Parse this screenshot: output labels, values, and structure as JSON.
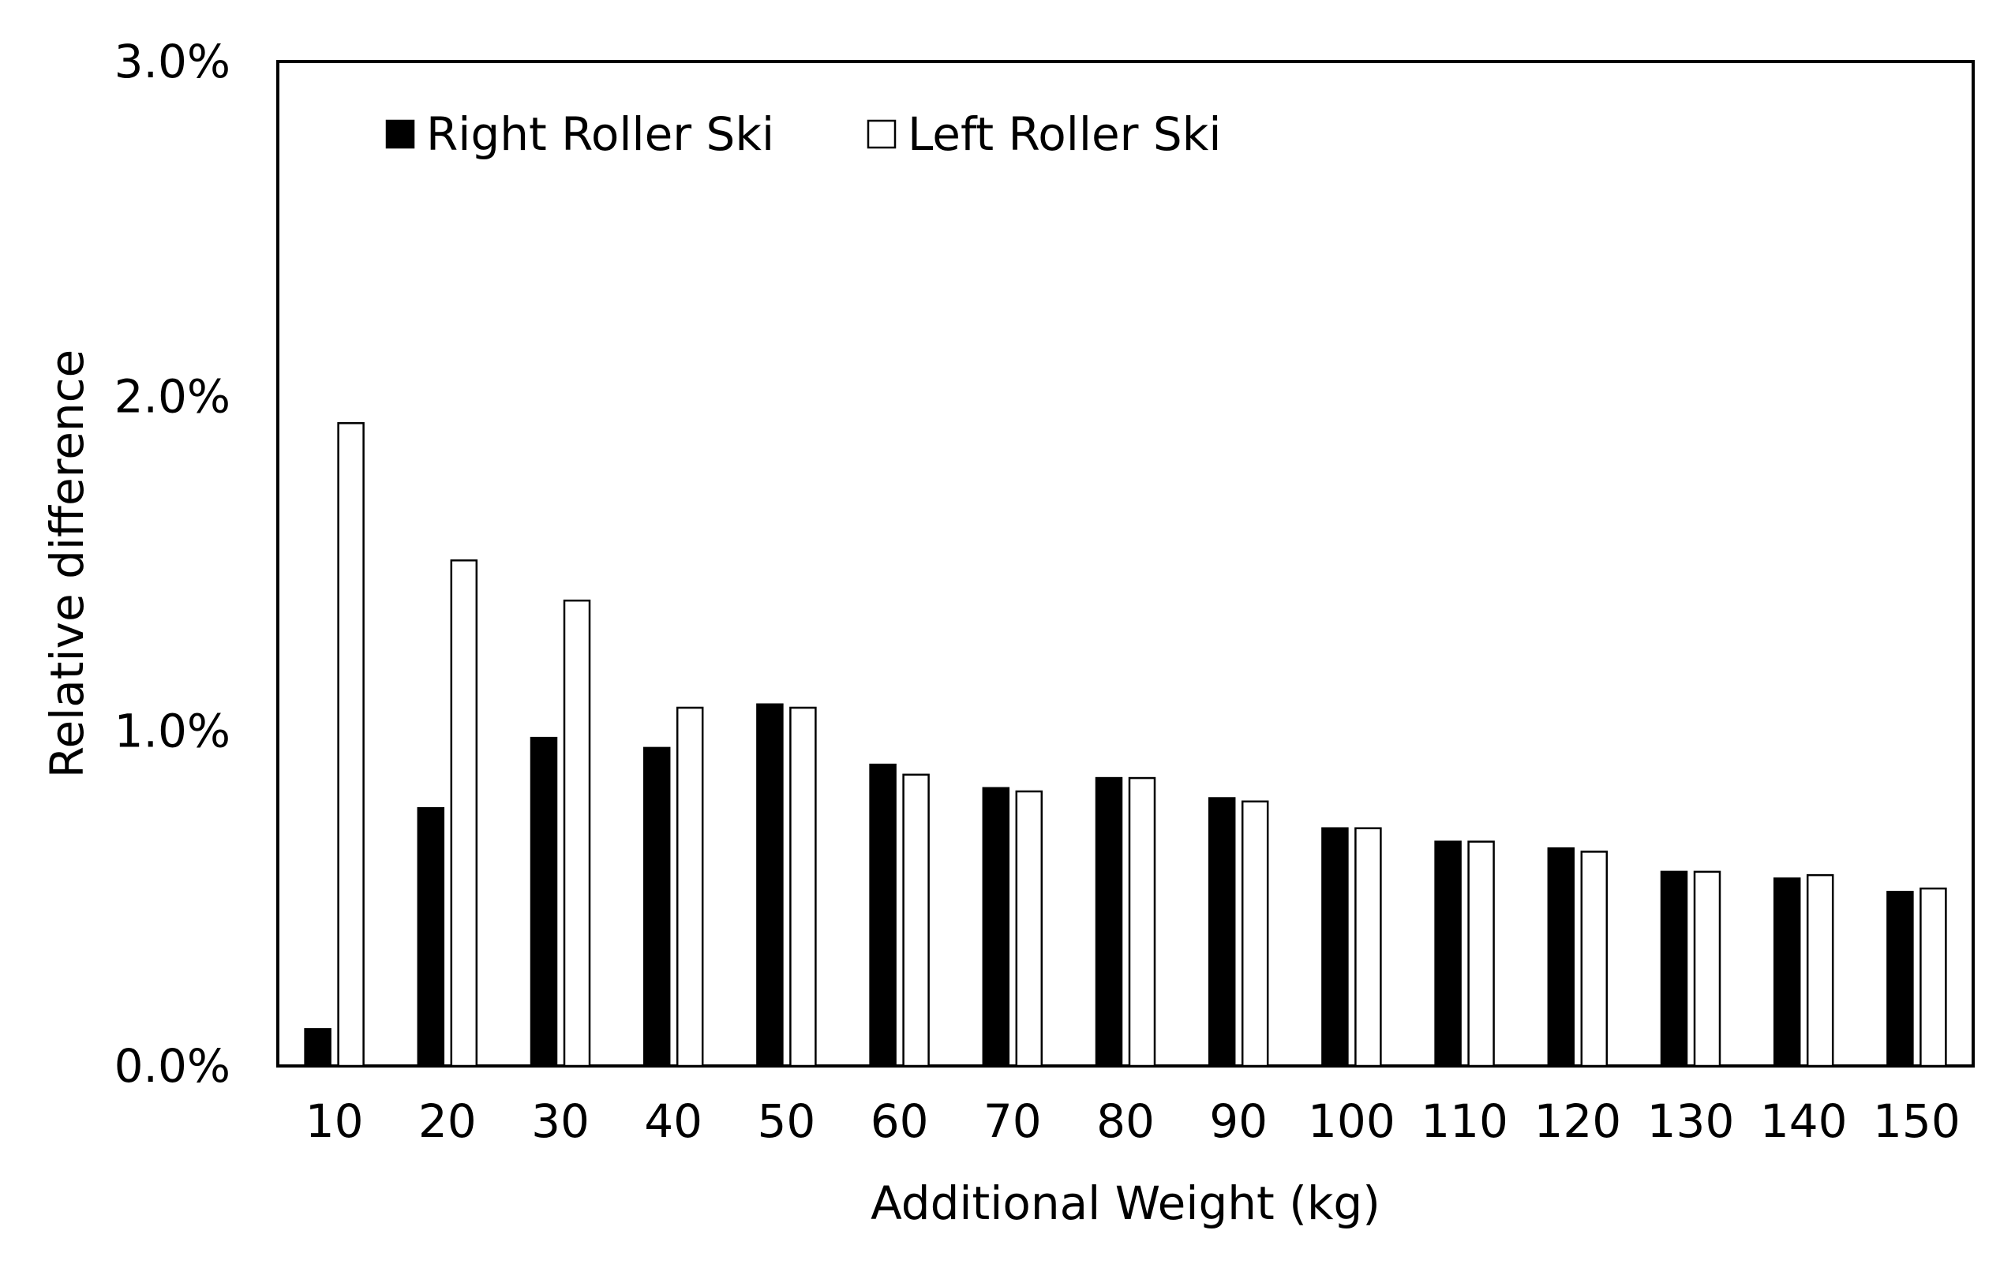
{
  "chart_data": {
    "type": "bar",
    "title": "",
    "xlabel": "Additional Weight (kg)",
    "ylabel": "Relative difference",
    "ylim": [
      0,
      3.0
    ],
    "yticks": [
      "0.0%",
      "1.0%",
      "2.0%",
      "3.0%"
    ],
    "categories": [
      "10",
      "20",
      "30",
      "40",
      "50",
      "60",
      "70",
      "80",
      "90",
      "100",
      "110",
      "120",
      "130",
      "140",
      "150"
    ],
    "series": [
      {
        "name": "Right Roller Ski",
        "color": "#000000",
        "values": [
          0.11,
          0.77,
          0.98,
          0.95,
          1.08,
          0.9,
          0.83,
          0.86,
          0.8,
          0.71,
          0.67,
          0.65,
          0.58,
          0.56,
          0.52
        ]
      },
      {
        "name": "Left Roller Ski",
        "color": "#ffffff",
        "values": [
          1.92,
          1.51,
          1.39,
          1.07,
          1.07,
          0.87,
          0.82,
          0.86,
          0.79,
          0.71,
          0.67,
          0.64,
          0.58,
          0.57,
          0.53
        ]
      }
    ],
    "grid": false,
    "legend_position": "top-left"
  }
}
